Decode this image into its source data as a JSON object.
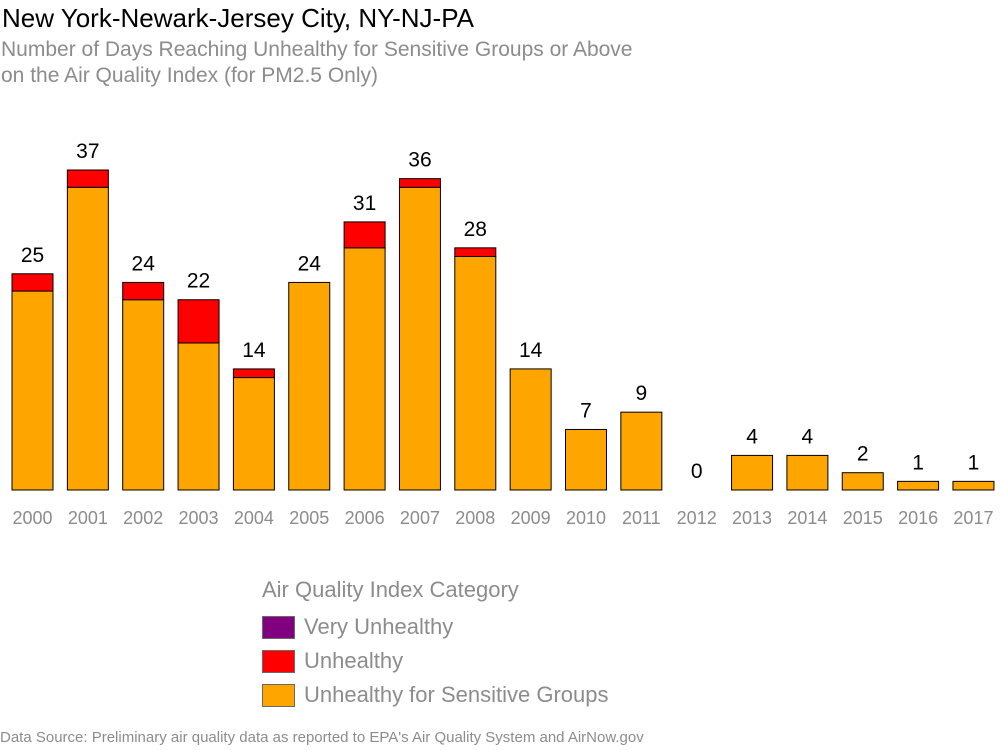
{
  "title": "New York-Newark-Jersey City, NY-NJ-PA",
  "subtitle": {
    "line1": "Number of Days Reaching Unhealthy for Sensitive Groups or Above",
    "line2": "on the Air Quality Index (for PM2.5 Only)"
  },
  "legend": {
    "title": "Air Quality Index Category",
    "items": [
      {
        "label": "Very Unhealthy",
        "color": "#800080"
      },
      {
        "label": "Unhealthy",
        "color": "#ff0000"
      },
      {
        "label": "Unhealthy for Sensitive Groups",
        "color": "#ffa500"
      }
    ]
  },
  "source": "Data Source: Preliminary air quality data as reported to EPA's Air Quality System and AirNow.gov",
  "chart_data": {
    "type": "bar",
    "stacked": true,
    "categories": [
      "2000",
      "2001",
      "2002",
      "2003",
      "2004",
      "2005",
      "2006",
      "2007",
      "2008",
      "2009",
      "2010",
      "2011",
      "2012",
      "2013",
      "2014",
      "2015",
      "2016",
      "2017"
    ],
    "series": [
      {
        "name": "Unhealthy for Sensitive Groups",
        "color": "#ffa500",
        "values": [
          23,
          35,
          22,
          17,
          13,
          24,
          28,
          35,
          27,
          14,
          7,
          9,
          0,
          4,
          4,
          2,
          1,
          1
        ]
      },
      {
        "name": "Unhealthy",
        "color": "#ff0000",
        "values": [
          2,
          2,
          2,
          5,
          1,
          0,
          3,
          1,
          1,
          0,
          0,
          0,
          0,
          0,
          0,
          0,
          0,
          0
        ]
      },
      {
        "name": "Very Unhealthy",
        "color": "#800080",
        "values": [
          0,
          0,
          0,
          0,
          0,
          0,
          0,
          0,
          0,
          0,
          0,
          0,
          0,
          0,
          0,
          0,
          0,
          0
        ]
      }
    ],
    "totals": [
      25,
      37,
      24,
      22,
      14,
      24,
      31,
      36,
      28,
      14,
      7,
      9,
      0,
      4,
      4,
      2,
      1,
      1
    ],
    "ylim": [
      0,
      37
    ],
    "grid": false,
    "legend_position": "bottom"
  }
}
